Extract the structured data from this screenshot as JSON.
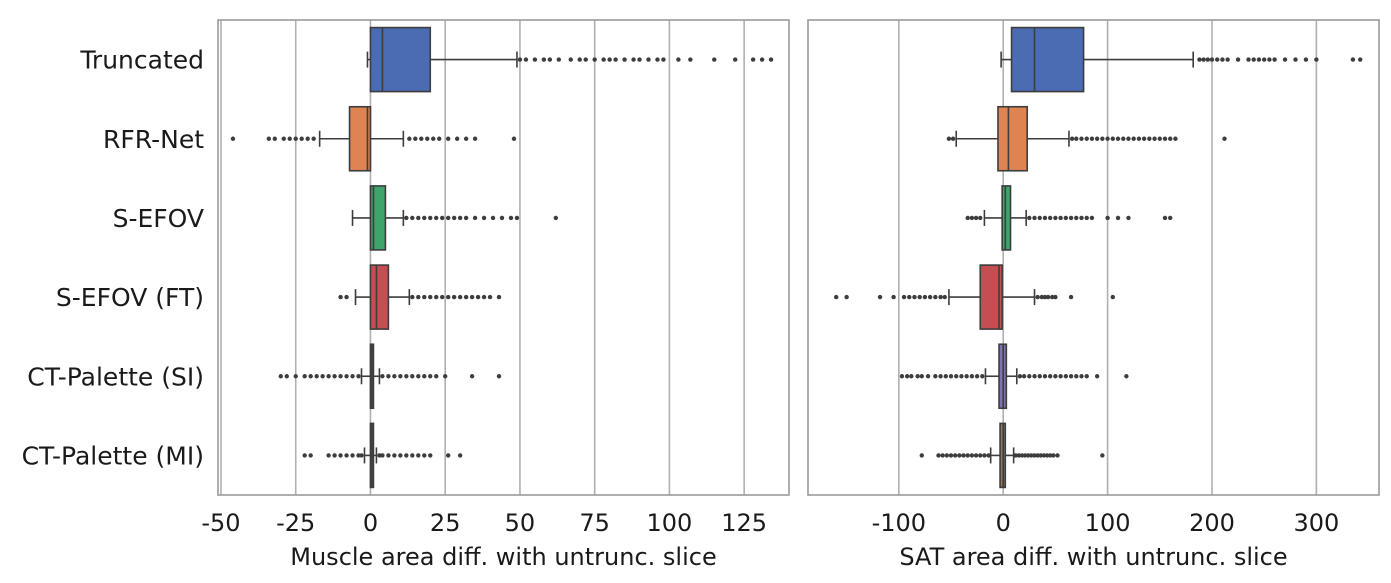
{
  "chart_data": [
    {
      "type": "box",
      "orientation": "horizontal",
      "categories": [
        "Truncated",
        "RFR-Net",
        "S-EFOV",
        "S-EFOV (FT)",
        "CT-Palette (SI)",
        "CT-Palette (MI)"
      ],
      "xlabel": "Muscle area diff. with untrunc. slice",
      "ylabel": "",
      "xlim": [
        -51,
        140
      ],
      "xticks": [
        -50,
        -25,
        0,
        25,
        50,
        75,
        100,
        125
      ],
      "xtick_labels": [
        "-50",
        "-25",
        "0",
        "25",
        "50",
        "75",
        "100",
        "125"
      ],
      "grid": "vertical",
      "colors": [
        "#4a6cb3",
        "#dd8452",
        "#3fa36b",
        "#c44e52",
        "#8172b3",
        "#937860"
      ],
      "boxes": [
        {
          "name": "Truncated",
          "whisker_low": -1,
          "q1": 0,
          "median": 4,
          "q3": 20,
          "whisker_high": 49,
          "outliers": [
            50,
            52,
            55,
            58,
            60,
            63,
            67,
            70,
            72,
            75,
            78,
            80,
            82,
            85,
            88,
            90,
            93,
            96,
            98,
            103,
            107,
            115,
            122,
            128,
            131,
            134
          ]
        },
        {
          "name": "RFR-Net",
          "whisker_low": -17,
          "q1": -7,
          "median": -1,
          "q3": 0,
          "whisker_high": 11,
          "outliers": [
            -46,
            -34,
            -32,
            -29,
            -27,
            -25,
            -23,
            -21,
            -19,
            13,
            15,
            17,
            19,
            21,
            23,
            26,
            29,
            32,
            35,
            48
          ]
        },
        {
          "name": "S-EFOV",
          "whisker_low": -6,
          "q1": 0,
          "median": 1,
          "q3": 5,
          "whisker_high": 11,
          "outliers": [
            12,
            14,
            16,
            18,
            20,
            22,
            24,
            26,
            28,
            30,
            32,
            35,
            38,
            41,
            44,
            47,
            49,
            62
          ]
        },
        {
          "name": "S-EFOV (FT)",
          "whisker_low": -5,
          "q1": 0,
          "median": 2,
          "q3": 6,
          "whisker_high": 13,
          "outliers": [
            -10,
            -8,
            14,
            16,
            18,
            20,
            22,
            24,
            26,
            28,
            30,
            32,
            34,
            36,
            38,
            40,
            43
          ]
        },
        {
          "name": "CT-Palette (SI)",
          "whisker_low": -3,
          "q1": 0,
          "median": 0.5,
          "q3": 1,
          "whisker_high": 3,
          "outliers": [
            -30,
            -28,
            -25,
            -22,
            -20,
            -18,
            -16,
            -14,
            -12,
            -10,
            -8,
            -6,
            -4,
            4,
            6,
            8,
            10,
            12,
            14,
            16,
            18,
            20,
            22,
            25,
            34,
            43
          ]
        },
        {
          "name": "CT-Palette (MI)",
          "whisker_low": -2,
          "q1": 0,
          "median": 0.5,
          "q3": 1,
          "whisker_high": 2,
          "outliers": [
            -22,
            -20,
            -14,
            -12,
            -10,
            -8,
            -6,
            -4,
            -3,
            3,
            4,
            6,
            8,
            10,
            12,
            14,
            16,
            18,
            20,
            26,
            30
          ]
        }
      ]
    },
    {
      "type": "box",
      "orientation": "horizontal",
      "categories": [
        "Truncated",
        "RFR-Net",
        "S-EFOV",
        "S-EFOV (FT)",
        "CT-Palette (SI)",
        "CT-Palette (MI)"
      ],
      "xlabel": "SAT area diff. with untrunc. slice",
      "ylabel": "",
      "xlim": [
        -187,
        360
      ],
      "xticks": [
        -100,
        0,
        100,
        200,
        300
      ],
      "xtick_labels": [
        "-100",
        "0",
        "100",
        "200",
        "300"
      ],
      "grid": "vertical",
      "colors": [
        "#4a6cb3",
        "#dd8452",
        "#3fa36b",
        "#c44e52",
        "#8172b3",
        "#937860"
      ],
      "boxes": [
        {
          "name": "Truncated",
          "whisker_low": -2,
          "q1": 8,
          "median": 30,
          "q3": 77,
          "whisker_high": 182,
          "outliers": [
            188,
            192,
            196,
            200,
            205,
            210,
            215,
            225,
            235,
            240,
            245,
            250,
            255,
            260,
            270,
            280,
            290,
            300,
            335,
            342
          ]
        },
        {
          "name": "RFR-Net",
          "whisker_low": -45,
          "q1": -5,
          "median": 5,
          "q3": 23,
          "whisker_high": 63,
          "outliers": [
            -52,
            -48,
            66,
            70,
            75,
            80,
            85,
            90,
            95,
            100,
            105,
            110,
            115,
            120,
            125,
            130,
            135,
            140,
            145,
            150,
            155,
            160,
            165,
            212
          ]
        },
        {
          "name": "S-EFOV",
          "whisker_low": -18,
          "q1": -1,
          "median": 2,
          "q3": 7,
          "whisker_high": 22,
          "outliers": [
            -34,
            -30,
            -26,
            -22,
            25,
            30,
            35,
            40,
            45,
            50,
            55,
            60,
            65,
            70,
            75,
            80,
            85,
            100,
            110,
            120,
            155,
            160
          ]
        },
        {
          "name": "S-EFOV (FT)",
          "whisker_low": -52,
          "q1": -22,
          "median": -4,
          "q3": -1,
          "whisker_high": 30,
          "outliers": [
            -160,
            -150,
            -118,
            -105,
            -95,
            -90,
            -85,
            -80,
            -75,
            -70,
            -65,
            -60,
            -56,
            33,
            37,
            40,
            43,
            47,
            50,
            65,
            105
          ]
        },
        {
          "name": "CT-Palette (SI)",
          "whisker_low": -17,
          "q1": -4,
          "median": 0,
          "q3": 3,
          "whisker_high": 13,
          "outliers": [
            -97,
            -92,
            -88,
            -82,
            -78,
            -72,
            -65,
            -60,
            -55,
            -50,
            -45,
            -40,
            -35,
            -30,
            -25,
            -20,
            16,
            20,
            25,
            30,
            35,
            40,
            45,
            50,
            55,
            60,
            65,
            70,
            75,
            80,
            90,
            118
          ]
        },
        {
          "name": "CT-Palette (MI)",
          "whisker_low": -12,
          "q1": -3,
          "median": 0,
          "q3": 2,
          "whisker_high": 10,
          "outliers": [
            -78,
            -62,
            -58,
            -54,
            -50,
            -46,
            -42,
            -38,
            -34,
            -30,
            -26,
            -22,
            -18,
            -14,
            12,
            15,
            18,
            21,
            24,
            27,
            30,
            33,
            36,
            39,
            42,
            45,
            48,
            52,
            95
          ]
        }
      ]
    }
  ]
}
